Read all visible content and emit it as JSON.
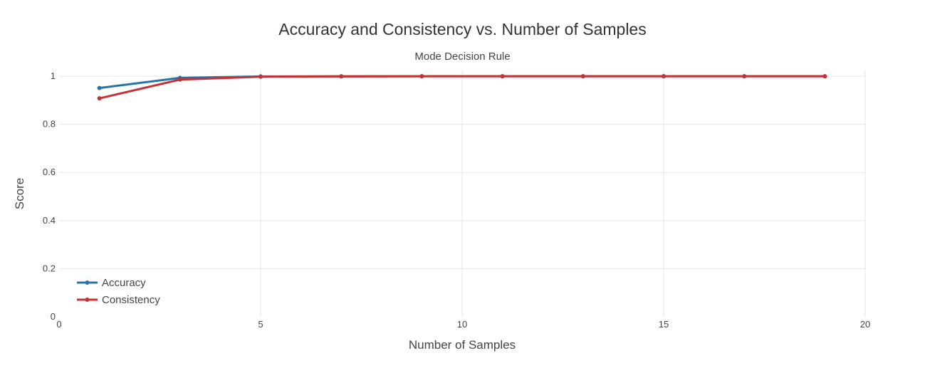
{
  "chart_data": {
    "type": "line",
    "title": "Accuracy and Consistency vs. Number of Samples",
    "subtitle": "Mode Decision Rule",
    "xlabel": "Number of Samples",
    "ylabel": "Score",
    "xlim": [
      0,
      20
    ],
    "ylim": [
      0,
      1
    ],
    "x_ticks": [
      "0",
      "5",
      "10",
      "15",
      "20"
    ],
    "y_ticks": [
      "0",
      "0.2",
      "0.4",
      "0.6",
      "0.8",
      "1"
    ],
    "grid": true,
    "legend_position": "bottom-left",
    "x": [
      1,
      3,
      5,
      7,
      9,
      11,
      13,
      15,
      17,
      19
    ],
    "series": [
      {
        "name": "Accuracy",
        "color": "#2a73a8",
        "values": [
          0.951,
          0.993,
          0.999,
          1.0,
          1.0,
          1.0,
          1.0,
          1.0,
          1.0,
          1.0
        ]
      },
      {
        "name": "Consistency",
        "color": "#c63136",
        "values": [
          0.908,
          0.986,
          0.998,
          0.999,
          1.0,
          1.0,
          1.0,
          1.0,
          1.0,
          1.0
        ]
      }
    ]
  }
}
